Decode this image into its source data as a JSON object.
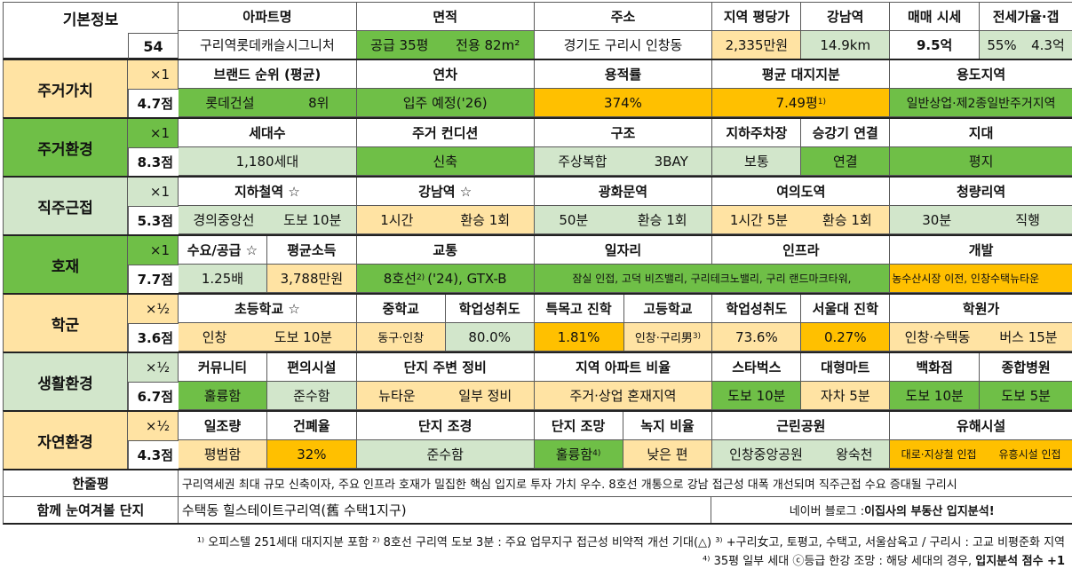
{
  "basic": {
    "label": "기본정보",
    "index": "54",
    "headers": [
      "아파트명",
      "면적",
      "주소",
      "지역 평당가",
      "강남역",
      "매매 시세",
      "전세가율·갭"
    ],
    "apt_name": "구리역롯데캐슬시그니처",
    "area_supply": "공급 35평",
    "area_exclusive": "전용 82m²",
    "address": "경기도 구리시 인창동",
    "price_per_pyeong": "2,335만원",
    "gangnam_distance": "14.9km",
    "sale_price": "9.5억",
    "jeonse_rate": "55%",
    "gap": "4.3억"
  },
  "sections": {
    "living_value": {
      "label": "주거가치",
      "mult": "×1",
      "score": "4.7점",
      "headers": [
        "브랜드 순위 (평균)",
        "연차",
        "용적률",
        "평균 대지지분",
        "용도지역"
      ],
      "brand": "롯데건설",
      "brand_rank": "8위",
      "year": "입주 예정('26)",
      "far": "374%",
      "land_share": "7.49평",
      "land_share_note": "1)",
      "zoning": "일반상업·제2종일반주거지역"
    },
    "living_env": {
      "label": "주거환경",
      "mult": "×1",
      "score": "8.3점",
      "headers": [
        "세대수",
        "주거 컨디션",
        "구조",
        "지하주차장",
        "승강기 연결",
        "지대"
      ],
      "households": "1,180세대",
      "condition": "신축",
      "structure_a": "주상복합",
      "structure_b": "3BAY",
      "parking": "보통",
      "elevator": "연결",
      "terrain": "평지"
    },
    "commute": {
      "label": "직주근접",
      "mult": "×1",
      "score": "5.3점",
      "headers": [
        "지하철역 ☆",
        "강남역 ☆",
        "광화문역",
        "여의도역",
        "청량리역"
      ],
      "subway_line": "경의중앙선",
      "subway_walk": "도보 10분",
      "gangnam_time": "1시간",
      "gangnam_transfer": "환승 1회",
      "gwanghwamun_time": "50분",
      "gwanghwamun_transfer": "환승 1회",
      "yeouido_time": "1시간 5분",
      "yeouido_transfer": "환승 1회",
      "cheongnyangni_time": "30분",
      "cheongnyangni_transfer": "직행"
    },
    "development": {
      "label": "호재",
      "mult": "×1",
      "score": "7.7점",
      "headers": [
        "수요/공급 ☆",
        "평균소득",
        "교통",
        "일자리",
        "인프라",
        "개발"
      ],
      "supply_demand": "1.25배",
      "income": "3,788만원",
      "transport": "8호선",
      "transport_note": "2)",
      "transport_rest": "('24), GTX-B",
      "jobs_infra": "잠실 인접, 고덕 비즈밸리, 구리테크노밸리, 구리 랜드마크타워,",
      "dev": "농수산시장 이전, 인창수택뉴타운"
    },
    "school": {
      "label": "학군",
      "mult": "×½",
      "score": "3.6점",
      "headers": [
        "초등학교 ☆",
        "중학교",
        "학업성취도",
        "특목고 진학",
        "고등학교",
        "학업성취도",
        "서울대 진학",
        "학원가"
      ],
      "elem": "인창",
      "elem_walk": "도보 10분",
      "middle": "동구·인창",
      "middle_score": "80.0%",
      "special_hs": "1.81%",
      "high": "인창·구리男",
      "high_note": "3)",
      "high_score": "73.6%",
      "snu": "0.27%",
      "academy": "인창·수택동",
      "academy_bus": "버스 15분"
    },
    "life_env": {
      "label": "생활환경",
      "mult": "×½",
      "score": "6.7점",
      "headers": [
        "커뮤니티",
        "편의시설",
        "단지 주변 정비",
        "지역 아파트 비율",
        "스타벅스",
        "대형마트",
        "백화점",
        "종합병원"
      ],
      "community": "훌륭함",
      "convenience": "준수함",
      "surroundings_a": "뉴타운",
      "surroundings_b": "일부 정비",
      "apt_ratio": "주거·상업 혼재지역",
      "starbucks": "도보 10분",
      "mart": "자차 5분",
      "dept": "도보 10분",
      "hospital": "도보 5분"
    },
    "nature_env": {
      "label": "자연환경",
      "mult": "×½",
      "score": "4.3점",
      "headers": [
        "일조량",
        "건폐율",
        "단지 조경",
        "단지 조망",
        "녹지 비율",
        "근린공원",
        "유해시설"
      ],
      "sunlight": "평범함",
      "coverage": "32%",
      "landscape": "준수함",
      "view": "훌륭함",
      "view_note": "4)",
      "green_ratio": "낮은 편",
      "park_a": "인창중앙공원",
      "park_b": "왕숙천",
      "hazard_a": "대로·지상철 인접",
      "hazard_b": "유흥시설 인접"
    }
  },
  "summary": {
    "label": "한줄평",
    "text": "구리역세권 최대 규모 신축이자, 주요 인프라 호재가 밀집한 핵심 입지로 투자 가치 우수. 8호선 개통으로 강남 접근성 대폭 개선되며 직주근접 수요 증대될 구리시"
  },
  "related": {
    "label": "함께 눈여겨볼 단지",
    "text": "수택동 힐스테이트구리역(舊 수택1지구)",
    "blog_prefix": "네이버 블로그 : ",
    "blog_name": "이집사의 부동산 입지분석!"
  },
  "footnotes": {
    "line1": "¹⁾ 오피스텔 251세대 대지지분 포함 ²⁾ 8호선 구리역 도보 3분 : 주요 업무지구 접근성 비약적 개선 기대(△) ³⁾ +구리女고, 토평고, 수택고, 서울삼육고 / 구리시 : 고교 비평준화 지역",
    "line2_a": "⁴⁾ 35평 일부 세대 ⓒ등급 한강 조망 : 해당 세대의 경우, ",
    "line2_b": "입지분석 점수 +1"
  },
  "colors": {
    "green": "#6fbf47",
    "light_green": "#d2e6cb",
    "yellow": "#ffe3a3",
    "orange": "#ffc000"
  }
}
